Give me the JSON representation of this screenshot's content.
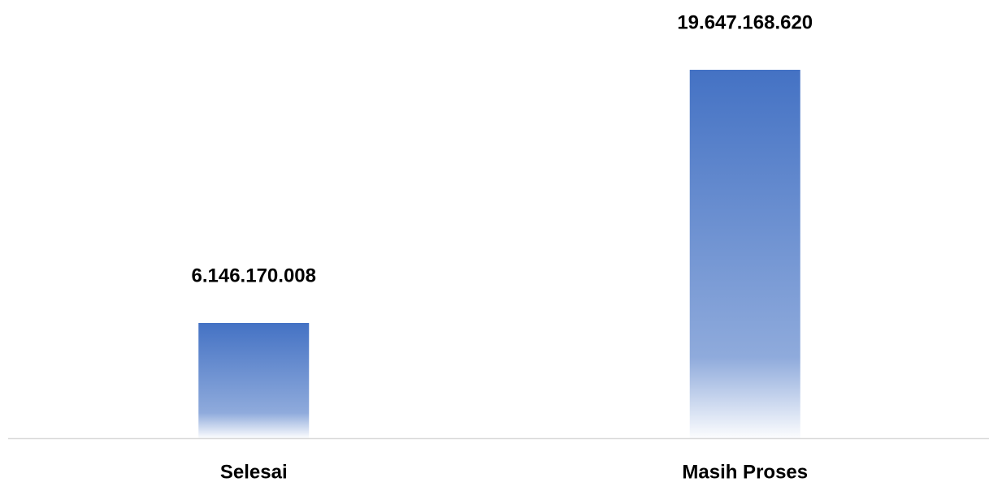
{
  "chart_data": {
    "type": "bar",
    "categories": [
      "Selesai",
      "Masih Proses"
    ],
    "values": [
      6146170008,
      19647168620
    ],
    "value_labels": [
      "6.146.170.008",
      "19.647.168.620"
    ],
    "color": "#4472c4"
  }
}
